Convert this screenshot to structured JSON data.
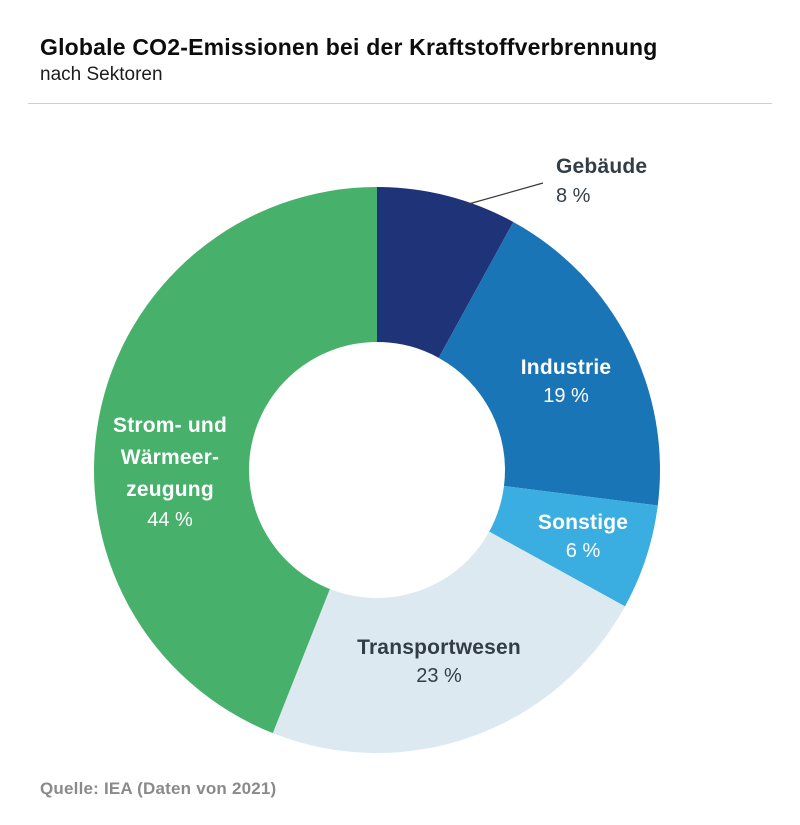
{
  "header": {
    "title": "Globale CO2-Emissionen bei der Kraftstoffverbrennung",
    "subtitle": "nach Sektoren"
  },
  "footer": {
    "source": "Quelle: IEA (Daten von 2021)"
  },
  "chart_data": {
    "type": "pie",
    "variant": "donut",
    "title": "Globale CO2-Emissionen bei der Kraftstoffverbrennung",
    "subtitle": "nach Sektoren",
    "unit": "%",
    "start_angle_deg": 0,
    "direction": "clockwise",
    "total": 100,
    "legend": "none",
    "segments": [
      {
        "label": "Gebäude",
        "value": 8,
        "pct_text": "8 %",
        "color": "#1f3378",
        "label_color": "#333d47",
        "label_position": "outside-callout"
      },
      {
        "label": "Industrie",
        "value": 19,
        "pct_text": "19 %",
        "color": "#1a75b7",
        "label_color": "#ffffff",
        "label_position": "inside"
      },
      {
        "label": "Sonstige",
        "value": 6,
        "pct_text": "6 %",
        "color": "#3aaee1",
        "label_color": "#ffffff",
        "label_position": "inside"
      },
      {
        "label": "Transportwesen",
        "value": 23,
        "pct_text": "23 %",
        "color": "#dde9f1",
        "label_color": "#333d47",
        "label_position": "inside"
      },
      {
        "label": "Strom- und Wärmeerzeugung",
        "value": 44,
        "pct_text": "44 %",
        "color": "#47b16c",
        "label_color": "#ffffff",
        "label_position": "inside",
        "display_label": "Strom- und\nWärmeer-\nzeugung"
      }
    ],
    "source": "Quelle: IEA (Daten von 2021)"
  }
}
